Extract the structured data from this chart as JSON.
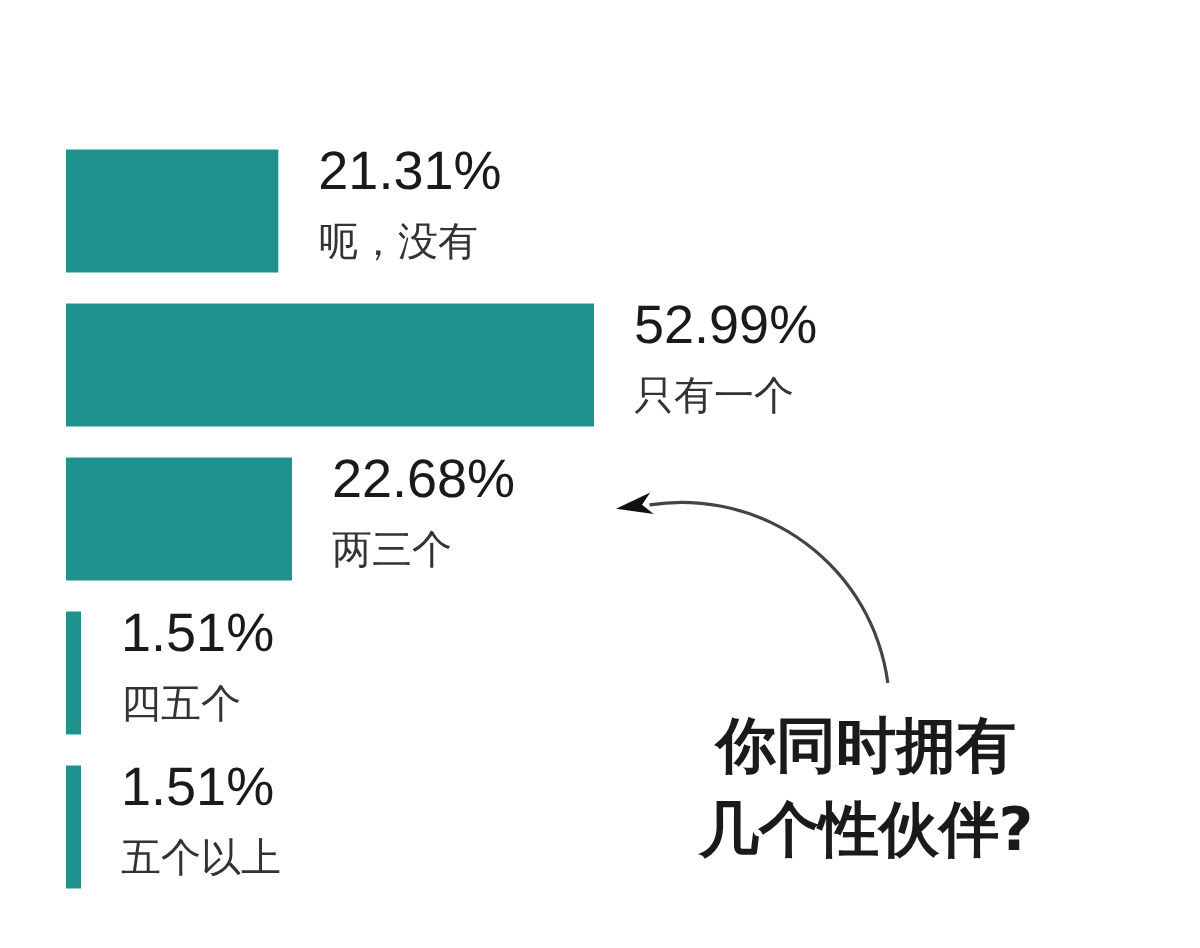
{
  "chart_data": {
    "type": "bar",
    "orientation": "horizontal",
    "title": "你同时拥有几个性伙伴?",
    "categories": [
      "呃，没有",
      "只有一个",
      "两三个",
      "四五个",
      "五个以上"
    ],
    "values": [
      21.31,
      52.99,
      22.68,
      1.51,
      1.51
    ],
    "value_labels": [
      "21.31%",
      "52.99%",
      "22.68%",
      "1.51%",
      "1.51%"
    ],
    "color": "#20928e",
    "tick_labels": "y"
  }
}
